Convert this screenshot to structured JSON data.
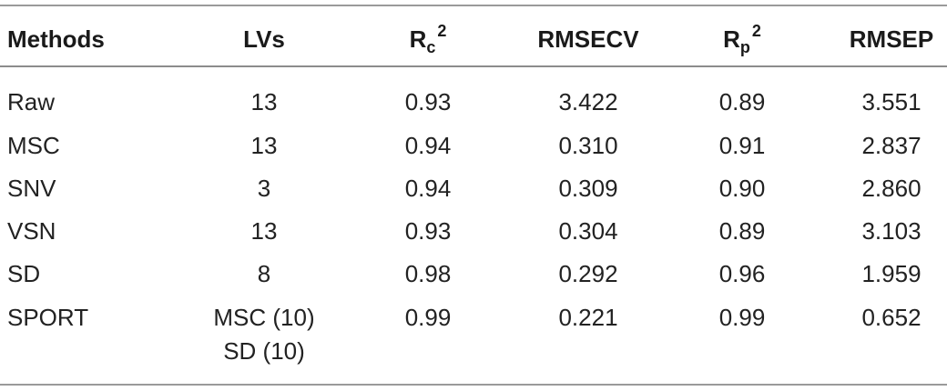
{
  "table": {
    "headers": {
      "methods": "Methods",
      "lvs": "LVs",
      "rc_base": "R",
      "rc_sub": "c",
      "rc_sup": "2",
      "rmsecv": "RMSECV",
      "rp_base": "R",
      "rp_sub": "p",
      "rp_sup": "2",
      "rmsep": "RMSEP"
    },
    "rows": [
      {
        "method": "Raw",
        "lvs": "13",
        "lvs2": "",
        "rc2": "0.93",
        "rmsecv": "3.422",
        "rp2": "0.89",
        "rmsep": "3.551"
      },
      {
        "method": "MSC",
        "lvs": "13",
        "lvs2": "",
        "rc2": "0.94",
        "rmsecv": "0.310",
        "rp2": "0.91",
        "rmsep": "2.837"
      },
      {
        "method": "SNV",
        "lvs": "3",
        "lvs2": "",
        "rc2": "0.94",
        "rmsecv": "0.309",
        "rp2": "0.90",
        "rmsep": "2.860"
      },
      {
        "method": "VSN",
        "lvs": "13",
        "lvs2": "",
        "rc2": "0.93",
        "rmsecv": "0.304",
        "rp2": "0.89",
        "rmsep": "3.103"
      },
      {
        "method": "SD",
        "lvs": "8",
        "lvs2": "",
        "rc2": "0.98",
        "rmsecv": "0.292",
        "rp2": "0.96",
        "rmsep": "1.959"
      },
      {
        "method": "SPORT",
        "lvs": "MSC (10)",
        "lvs2": "SD (10)",
        "rc2": "0.99",
        "rmsecv": "0.221",
        "rp2": "0.99",
        "rmsep": "0.652"
      }
    ]
  }
}
